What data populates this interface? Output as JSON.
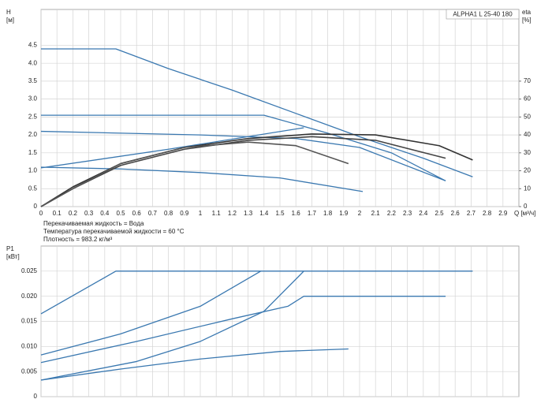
{
  "chart_data": [
    {
      "type": "line",
      "ylabel": "H",
      "ylabel_unit": "[м]",
      "y2label": "eta",
      "y2label_unit": "[%]",
      "xlabel": "Q [м³/ч]",
      "legend_box": "ALPHA1 L 25-40  180",
      "notes": [
        "Перекачиваемая жидкость = Вода",
        "Температура перекачиваемой жидкости = 60 °C",
        "Плотность = 983.2 кг/м³"
      ],
      "xlim": [
        0,
        3.0
      ],
      "xticks": [
        0,
        0.1,
        0.2,
        0.3,
        0.4,
        0.5,
        0.6,
        0.7,
        0.8,
        0.9,
        1,
        1.1,
        1.2,
        1.3,
        1.4,
        1.5,
        1.6,
        1.7,
        1.8,
        1.9,
        2,
        2.1,
        2.2,
        2.3,
        2.4,
        2.5,
        2.6,
        2.7,
        2.8,
        2.9
      ],
      "show_xtick_labels": true,
      "ylim": [
        0,
        5.5
      ],
      "yticks": [
        0,
        0.5,
        {
          "value": 1,
          "label": "1.0"
        },
        1.5,
        {
          "value": 2,
          "label": "2.0"
        },
        2.5,
        {
          "value": 3,
          "label": "3.0"
        },
        3.5,
        {
          "value": 4,
          "label": "4.0"
        },
        4.5
      ],
      "y2lim": [
        0,
        110
      ],
      "y2ticks": [
        0,
        10,
        20,
        30,
        40,
        50,
        60,
        70
      ],
      "grid": true,
      "series": [
        {
          "color": "#3a78b0",
          "x": [
            0,
            0.47,
            0.8,
            1.2,
            1.6,
            2.0,
            2.4,
            2.71
          ],
          "values": [
            4.4,
            4.4,
            3.85,
            3.25,
            2.6,
            1.95,
            1.35,
            0.83
          ]
        },
        {
          "color": "#3a78b0",
          "x": [
            0,
            1.4,
            1.8,
            2.2,
            2.54
          ],
          "values": [
            2.55,
            2.55,
            2.05,
            1.5,
            0.72
          ]
        },
        {
          "color": "#3a78b0",
          "x": [
            0,
            1.0,
            1.6,
            2.0,
            2.54
          ],
          "values": [
            2.1,
            2.0,
            1.9,
            1.65,
            0.72
          ]
        },
        {
          "color": "#3a78b0",
          "x": [
            0,
            0.5,
            1.0,
            1.5,
            2.02
          ],
          "values": [
            1.1,
            1.05,
            0.95,
            0.8,
            0.42
          ]
        },
        {
          "color": "#3a78b0",
          "x": [
            0,
            0.8,
            1.65
          ],
          "values": [
            1.08,
            1.6,
            2.2
          ]
        },
        {
          "color": "#333333",
          "axis": "y2",
          "x": [
            0,
            0.2,
            0.5,
            0.9,
            1.3,
            1.7,
            2.1,
            2.5,
            2.71
          ],
          "values": [
            0,
            11,
            24,
            33,
            38,
            40.5,
            40,
            34,
            26
          ]
        },
        {
          "color": "#444444",
          "axis": "y2",
          "x": [
            0,
            0.2,
            0.5,
            0.9,
            1.3,
            1.7,
            2.1,
            2.54
          ],
          "values": [
            0,
            10,
            23,
            32,
            37,
            39,
            37,
            27
          ]
        },
        {
          "color": "#555555",
          "axis": "y2",
          "x": [
            0,
            0.2,
            0.5,
            0.9,
            1.3,
            1.6,
            1.93
          ],
          "values": [
            0,
            10,
            24,
            33,
            36,
            34,
            24
          ]
        }
      ]
    },
    {
      "type": "line",
      "ylabel": "P1",
      "ylabel_unit": "[кВт]",
      "xlim": [
        0,
        3.0
      ],
      "xticks": [
        0,
        0.1,
        0.2,
        0.3,
        0.4,
        0.5,
        0.6,
        0.7,
        0.8,
        0.9,
        1,
        1.1,
        1.2,
        1.3,
        1.4,
        1.5,
        1.6,
        1.7,
        1.8,
        1.9,
        2,
        2.1,
        2.2,
        2.3,
        2.4,
        2.5,
        2.6,
        2.7,
        2.8,
        2.9
      ],
      "show_xtick_labels": false,
      "ylim": [
        0,
        0.03
      ],
      "yticks": [
        0,
        0.005,
        {
          "value": 0.01,
          "label": "0.010"
        },
        0.015,
        {
          "value": 0.02,
          "label": "0.020"
        },
        0.025
      ],
      "grid": true,
      "series": [
        {
          "color": "#3a78b0",
          "x": [
            0,
            0.47,
            2.71
          ],
          "values": [
            0.0165,
            0.025,
            0.025
          ]
        },
        {
          "color": "#3a78b0",
          "x": [
            0,
            0.5,
            1.0,
            1.38
          ],
          "values": [
            0.0083,
            0.0125,
            0.018,
            0.025
          ]
        },
        {
          "color": "#3a78b0",
          "x": [
            0,
            0.6,
            1.2,
            1.55,
            1.65,
            2.54
          ],
          "values": [
            0.0068,
            0.011,
            0.0155,
            0.018,
            0.02,
            0.02
          ]
        },
        {
          "color": "#3a78b0",
          "x": [
            0,
            0.6,
            1.0,
            1.4,
            1.65
          ],
          "values": [
            0.0033,
            0.007,
            0.011,
            0.017,
            0.025
          ]
        },
        {
          "color": "#3a78b0",
          "x": [
            0,
            0.5,
            1.0,
            1.5,
            1.93
          ],
          "values": [
            0.0033,
            0.0055,
            0.0075,
            0.009,
            0.0095
          ]
        }
      ]
    }
  ]
}
